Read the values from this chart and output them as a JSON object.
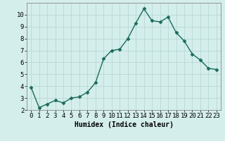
{
  "x": [
    0,
    1,
    2,
    3,
    4,
    5,
    6,
    7,
    8,
    9,
    10,
    11,
    12,
    13,
    14,
    15,
    16,
    17,
    18,
    19,
    20,
    21,
    22,
    23
  ],
  "y": [
    3.9,
    2.2,
    2.5,
    2.8,
    2.6,
    3.0,
    3.1,
    3.5,
    4.3,
    6.3,
    7.0,
    7.1,
    8.0,
    9.3,
    10.5,
    9.5,
    9.4,
    9.8,
    8.5,
    7.8,
    6.7,
    6.2,
    5.5,
    5.4
  ],
  "line_color": "#1a6b5a",
  "marker": "D",
  "markersize": 2.5,
  "linewidth": 1.0,
  "bg_color": "#d4eeec",
  "grid_color": "#b8d8d6",
  "xlabel": "Humidex (Indice chaleur)",
  "ylim": [
    2,
    11
  ],
  "xlim": [
    -0.5,
    23.5
  ],
  "yticks": [
    2,
    3,
    4,
    5,
    6,
    7,
    8,
    9,
    10
  ],
  "xticks": [
    0,
    1,
    2,
    3,
    4,
    5,
    6,
    7,
    8,
    9,
    10,
    11,
    12,
    13,
    14,
    15,
    16,
    17,
    18,
    19,
    20,
    21,
    22,
    23
  ],
  "xlabel_fontsize": 7,
  "tick_fontsize": 6.5
}
